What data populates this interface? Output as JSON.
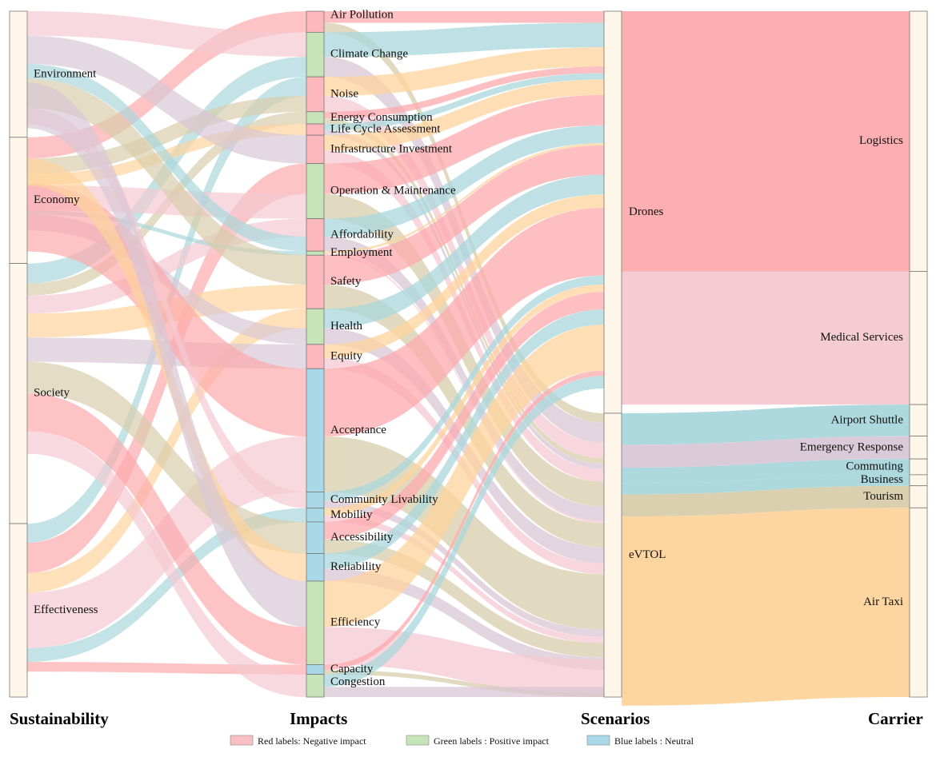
{
  "column_titles": {
    "sustainability": "Sustainability",
    "impacts": "Impacts",
    "scenarios": "Scenarios",
    "carrier": "Carrier"
  },
  "legend": [
    {
      "label": "Red labels: Negative impact",
      "color": "#f9c0c3"
    },
    {
      "label": "Green labels : Positive impact",
      "color": "#c7e3b8"
    },
    {
      "label": "Blue labels : Neutral",
      "color": "#a9d9e8"
    }
  ],
  "colors": {
    "negative": "#fcb8bd",
    "positive": "#c7e3b8",
    "neutral": "#a9d9e8",
    "node_fill": "#fdf6e9",
    "node_stroke": "#777777"
  },
  "sustainability": [
    {
      "label": "Environment",
      "weight": 16
    },
    {
      "label": "Economy",
      "weight": 16
    },
    {
      "label": "Society",
      "weight": 33
    },
    {
      "label": "Effectiveness",
      "weight": 22
    }
  ],
  "impacts": [
    {
      "label": "Air Pollution",
      "type": "mixed",
      "weight": 2.6
    },
    {
      "label": "Climate Change",
      "type": "positive",
      "weight": 5.5
    },
    {
      "label": "Noise",
      "type": "negative",
      "weight": 4.3
    },
    {
      "label": "Energy Consumption",
      "type": "positive",
      "weight": 1.5
    },
    {
      "label": "Life Cycle Assessment",
      "type": "negative",
      "weight": 1.4
    },
    {
      "label": "Infrastructure Investment",
      "type": "negative",
      "weight": 3.5
    },
    {
      "label": "Operation & Maintenance",
      "type": "positive",
      "weight": 6.8
    },
    {
      "label": "Affordability",
      "type": "negative",
      "weight": 4.0
    },
    {
      "label": "Employment",
      "type": "positive",
      "weight": 0.5
    },
    {
      "label": "Safety",
      "type": "negative",
      "weight": 6.6
    },
    {
      "label": "Health",
      "type": "positive",
      "weight": 4.4
    },
    {
      "label": "Equity",
      "type": "negative",
      "weight": 3.0
    },
    {
      "label": "Acceptance",
      "type": "neutral",
      "weight": 15.2
    },
    {
      "label": "Community Livability",
      "type": "neutral",
      "weight": 2.0
    },
    {
      "label": "Mobility",
      "type": "neutral",
      "weight": 1.7
    },
    {
      "label": "Accessibility",
      "type": "neutral",
      "weight": 3.9
    },
    {
      "label": "Reliability",
      "type": "neutral",
      "weight": 3.4
    },
    {
      "label": "Efficiency",
      "type": "positive",
      "weight": 10.3
    },
    {
      "label": "Capacity",
      "type": "neutral",
      "weight": 1.2
    },
    {
      "label": "Congestion",
      "type": "positive",
      "weight": 2.8
    }
  ],
  "scenarios": [
    {
      "label": "Drones",
      "weight": 51
    },
    {
      "label": "eVTOL",
      "weight": 36
    }
  ],
  "carriers": [
    {
      "label": "Logistics",
      "weight": 33.0,
      "color": "#fcaaad"
    },
    {
      "label": "Medical Services",
      "weight": 16.9,
      "color": "#f4c9d2"
    },
    {
      "label": "Airport Shuttle",
      "weight": 4.0,
      "color": "#a9d7dc"
    },
    {
      "label": "Emergency Response",
      "weight": 2.9,
      "color": "#d9c7d6"
    },
    {
      "label": "Commuting",
      "weight": 2.0,
      "color": "#a9d7dc"
    },
    {
      "label": "Business",
      "weight": 1.4,
      "color": "#a9d7dc"
    },
    {
      "label": "Tourism",
      "weight": 2.8,
      "color": "#d8cdab"
    },
    {
      "label": "Air Taxi",
      "weight": 24.0,
      "color": "#fdd39c"
    }
  ]
}
